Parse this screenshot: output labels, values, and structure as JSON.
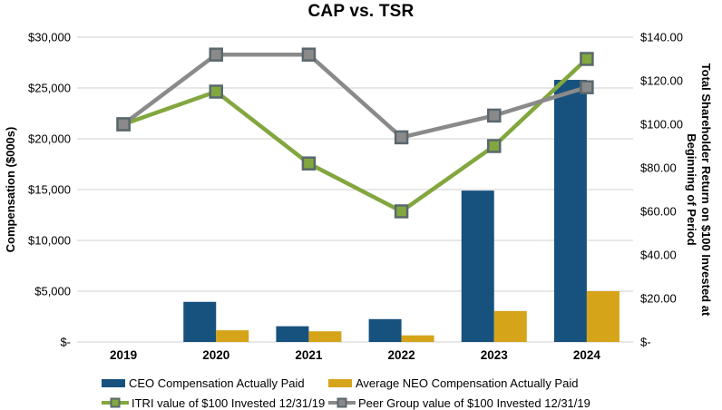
{
  "chart_data": {
    "type": "combo-bar-line",
    "title": "CAP vs. TSR",
    "categories": [
      "2019",
      "2020",
      "2021",
      "2022",
      "2023",
      "2024"
    ],
    "bar_series": [
      {
        "id": "ceo-cap",
        "name": "CEO Compensation Actually Paid",
        "axis": "left",
        "color": "#17517E",
        "values": [
          null,
          3950,
          1550,
          2250,
          14900,
          25800
        ]
      },
      {
        "id": "neo-cap",
        "name": "Average NEO Compensation Actually Paid",
        "axis": "left",
        "color": "#D5A419",
        "values": [
          null,
          1150,
          1050,
          650,
          3050,
          5000
        ]
      }
    ],
    "line_series": [
      {
        "id": "itri-tsr",
        "name": "ITRI value of $100 Invested 12/31/19",
        "axis": "right",
        "color": "#82A73E",
        "values": [
          100,
          115,
          82,
          60,
          90,
          130
        ]
      },
      {
        "id": "peer-tsr",
        "name": "Peer Group value of $100 Invested 12/31/19",
        "axis": "right",
        "color": "#8A8A8A",
        "values": [
          100,
          132,
          132,
          94,
          104,
          117
        ]
      }
    ],
    "left_axis": {
      "title": "Compensation ($000s)",
      "min": 0,
      "max": 30000,
      "step": 5000,
      "tick_labels": [
        "$-",
        "$5,000",
        "$10,000",
        "$15,000",
        "$20,000",
        "$25,000",
        "$30,000"
      ]
    },
    "right_axis": {
      "title_lines": [
        "Total Shareholder Return on $100 Invested at",
        "Beginning of Period"
      ],
      "min": 0,
      "max": 140,
      "step": 20,
      "tick_labels": [
        "$-",
        "$20.00",
        "$40.00",
        "$60.00",
        "$80.00",
        "$100.00",
        "$120.00",
        "$140.00"
      ]
    },
    "legend": [
      {
        "swatch": "bar",
        "series": "ceo-cap",
        "label": "CEO Compensation Actually Paid"
      },
      {
        "swatch": "bar",
        "series": "neo-cap",
        "label": "Average NEO Compensation Actually Paid"
      },
      {
        "swatch": "line-marker",
        "series": "itri-tsr",
        "label": "ITRI value of $100 Invested 12/31/19"
      },
      {
        "swatch": "line-marker",
        "series": "peer-tsr",
        "label": "Peer Group value of $100 Invested 12/31/19"
      }
    ],
    "colors": {
      "gridline": "#D9D9D9",
      "marker_border": "#5A686E",
      "text": "#000000"
    },
    "layout": {
      "grid": "horizontal-only",
      "legend_position": "bottom-two-columns"
    }
  }
}
